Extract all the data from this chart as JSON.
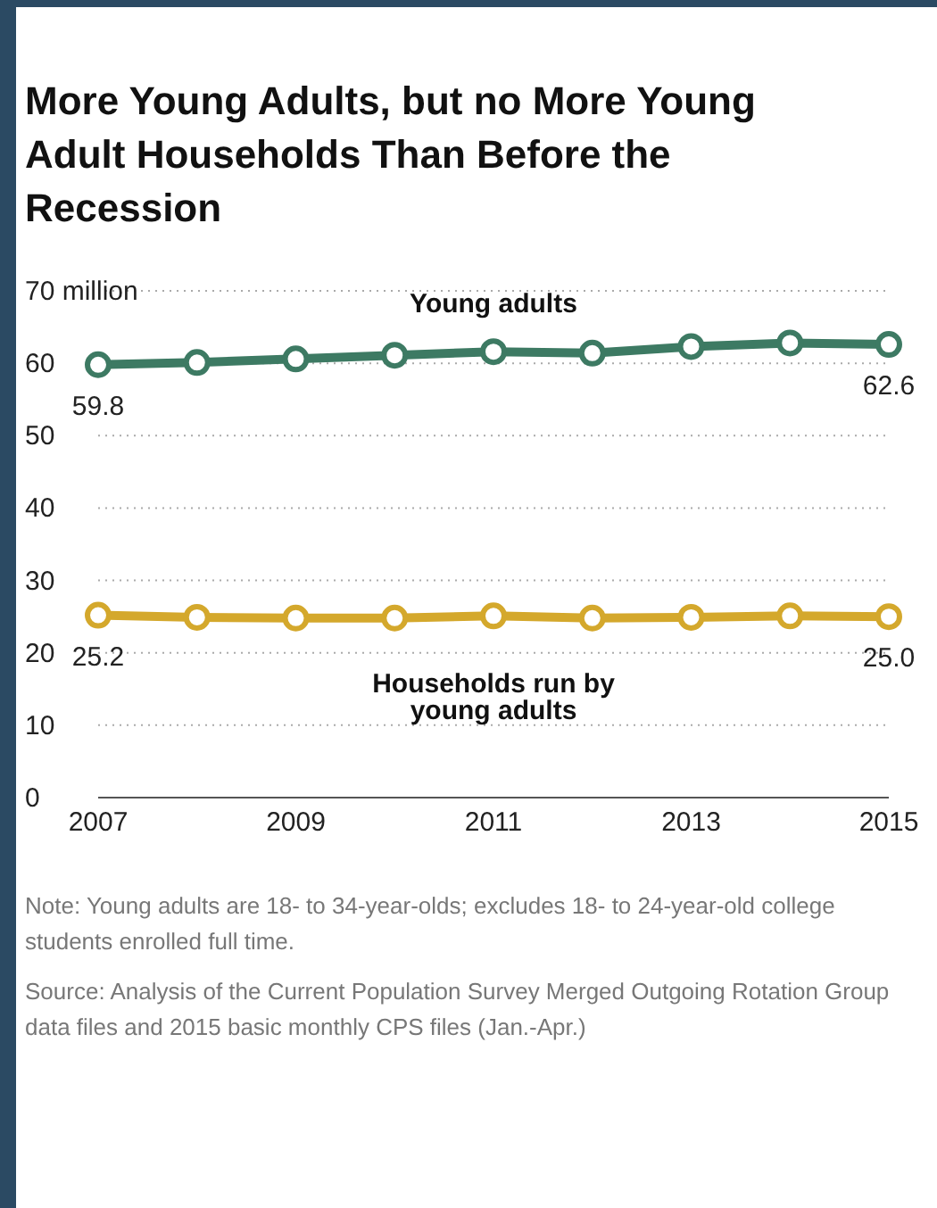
{
  "chart_data": {
    "type": "line",
    "title": "More Young Adults, but no More Young Adult Households Than Before the Recession",
    "x": [
      2007,
      2008,
      2009,
      2010,
      2011,
      2012,
      2013,
      2014,
      2015
    ],
    "series": [
      {
        "name": "Young adults",
        "color": "#3d7a63",
        "values": [
          59.8,
          60.1,
          60.6,
          61.1,
          61.6,
          61.4,
          62.3,
          62.8,
          62.6
        ],
        "value_labels": [
          "59.8",
          null,
          null,
          null,
          null,
          null,
          null,
          null,
          "62.6"
        ]
      },
      {
        "name": "Households run by young adults",
        "color": "#d4a82c",
        "values": [
          25.2,
          24.9,
          24.8,
          24.8,
          25.1,
          24.8,
          24.9,
          25.1,
          25.0
        ],
        "value_labels": [
          "25.2",
          null,
          null,
          null,
          null,
          null,
          null,
          null,
          "25.0"
        ]
      }
    ],
    "xlim": [
      2007,
      2015
    ],
    "xticks": [
      2007,
      2009,
      2011,
      2013,
      2015
    ],
    "ylim": [
      0,
      70
    ],
    "yticks": [
      0,
      10,
      20,
      30,
      40,
      50,
      60,
      {
        "value": 70,
        "label": "70 million"
      }
    ],
    "grid": "y",
    "marker": "circle",
    "line_style": "solid",
    "legend": false,
    "annotations": [
      "Note: Young adults are 18- to 34-year-olds; excludes 18- to 24-year-old college students enrolled full time.",
      "Source: Analysis of the Current Population Survey Merged Outgoing Rotation Group data files and 2015 basic monthly CPS files (Jan.-Apr.)"
    ]
  }
}
